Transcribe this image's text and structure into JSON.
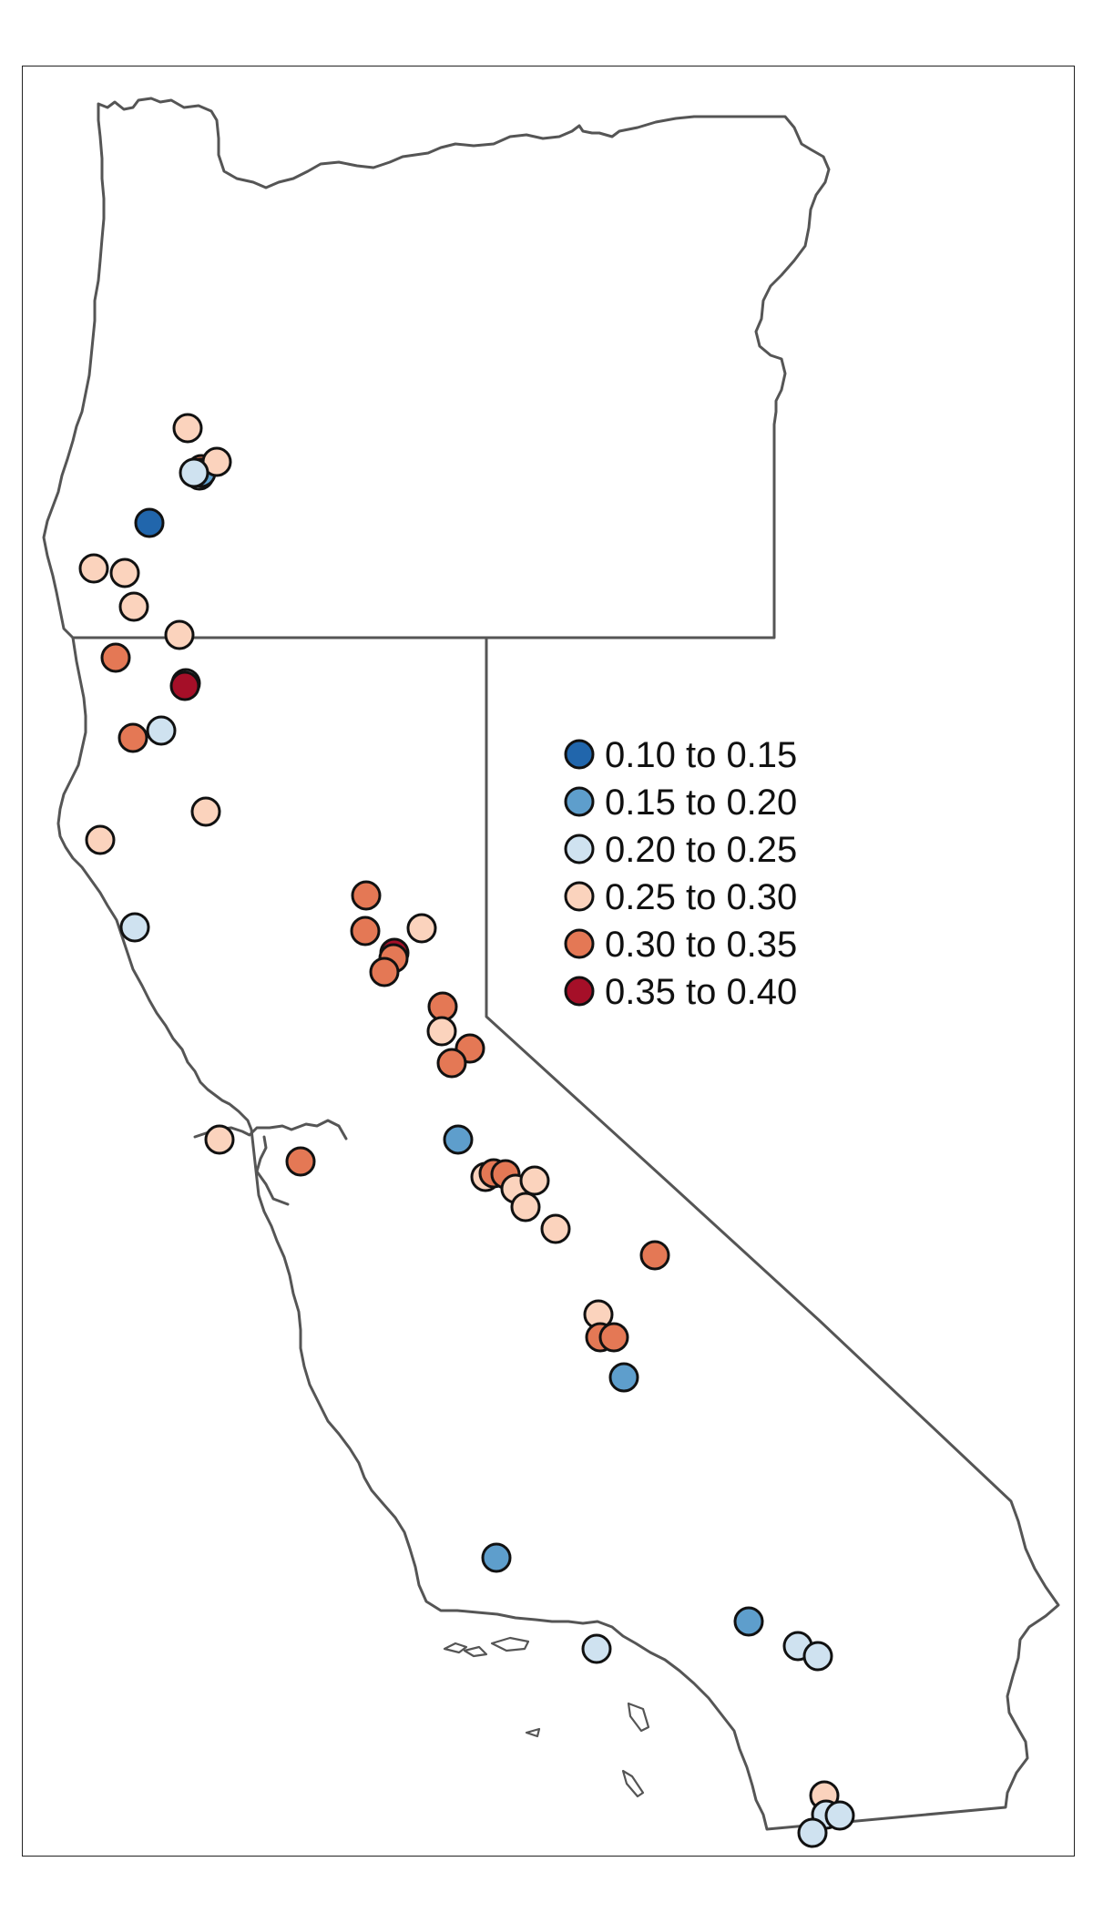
{
  "colors": {
    "0.10 to 0.15": "#2166ac",
    "0.15 to 0.20": "#5e9ecc",
    "0.20 to 0.25": "#cfe2f0",
    "0.25 to 0.30": "#fbd3bd",
    "0.30 to 0.35": "#e47855",
    "0.35 to 0.40": "#a50f28",
    "border": "#555555",
    "marker_outline": "#111111"
  },
  "legend": [
    {
      "label": "0.10 to 0.15",
      "color": "#2166ac"
    },
    {
      "label": "0.15 to 0.20",
      "color": "#5e9ecc"
    },
    {
      "label": "0.20 to 0.25",
      "color": "#cfe2f0"
    },
    {
      "label": "0.25 to 0.30",
      "color": "#fbd3bd"
    },
    {
      "label": "0.30 to 0.35",
      "color": "#e47855"
    },
    {
      "label": "0.35 to 0.40",
      "color": "#a50f28"
    }
  ],
  "regions": [
    "Oregon",
    "California"
  ],
  "sites": [
    {
      "bin": "0.25 to 0.30"
    },
    {
      "bin": "0.30 to 0.35"
    },
    {
      "bin": "0.20 to 0.25"
    },
    {
      "bin": "0.15 to 0.20"
    },
    {
      "bin": "0.25 to 0.30"
    },
    {
      "bin": "0.10 to 0.15"
    },
    {
      "bin": "0.20 to 0.25"
    },
    {
      "bin": "0.25 to 0.30"
    },
    {
      "bin": "0.25 to 0.30"
    },
    {
      "bin": "0.25 to 0.30"
    },
    {
      "bin": "0.25 to 0.30"
    },
    {
      "bin": "0.30 to 0.35"
    },
    {
      "bin": "0.20 to 0.25"
    },
    {
      "bin": "0.35 to 0.40"
    },
    {
      "bin": "0.30 to 0.35"
    },
    {
      "bin": "0.20 to 0.25"
    },
    {
      "bin": "0.25 to 0.30"
    },
    {
      "bin": "0.25 to 0.30"
    },
    {
      "bin": "0.20 to 0.25"
    },
    {
      "bin": "0.30 to 0.35"
    },
    {
      "bin": "0.25 to 0.30"
    },
    {
      "bin": "0.30 to 0.35"
    },
    {
      "bin": "0.35 to 0.40"
    },
    {
      "bin": "0.30 to 0.35"
    },
    {
      "bin": "0.30 to 0.35"
    },
    {
      "bin": "0.30 to 0.35"
    },
    {
      "bin": "0.25 to 0.30"
    },
    {
      "bin": "0.30 to 0.35"
    },
    {
      "bin": "0.30 to 0.35"
    },
    {
      "bin": "0.15 to 0.20"
    },
    {
      "bin": "0.25 to 0.30"
    },
    {
      "bin": "0.30 to 0.35"
    },
    {
      "bin": "0.30 to 0.35"
    },
    {
      "bin": "0.25 to 0.30"
    },
    {
      "bin": "0.25 to 0.30"
    },
    {
      "bin": "0.25 to 0.30"
    },
    {
      "bin": "0.25 to 0.30"
    },
    {
      "bin": "0.25 to 0.30"
    },
    {
      "bin": "0.30 to 0.35"
    },
    {
      "bin": "0.30 to 0.35"
    },
    {
      "bin": "0.25 to 0.30"
    },
    {
      "bin": "0.30 to 0.35"
    },
    {
      "bin": "0.30 to 0.35"
    },
    {
      "bin": "0.15 to 0.20"
    },
    {
      "bin": "0.15 to 0.20"
    },
    {
      "bin": "0.15 to 0.20"
    },
    {
      "bin": "0.20 to 0.25"
    },
    {
      "bin": "0.20 to 0.25"
    },
    {
      "bin": "0.20 to 0.25"
    },
    {
      "bin": "0.25 to 0.30"
    },
    {
      "bin": "0.20 to 0.25"
    },
    {
      "bin": "0.20 to 0.25"
    },
    {
      "bin": "0.20 to 0.25"
    }
  ]
}
